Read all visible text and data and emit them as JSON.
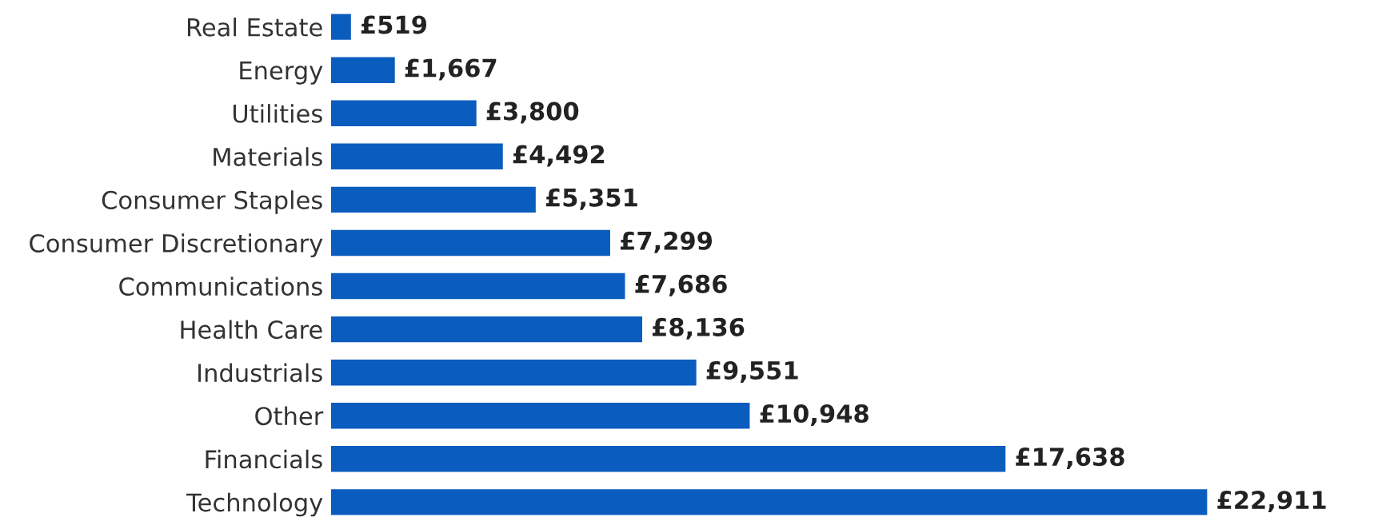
{
  "chart_data": {
    "type": "bar",
    "orientation": "horizontal",
    "tick_labels": "y",
    "grid": false,
    "legend": false,
    "categories": [
      "Real Estate",
      "Energy",
      "Utilities",
      "Materials",
      "Consumer Staples",
      "Consumer Discretionary",
      "Communications",
      "Health Care",
      "Industrials",
      "Other",
      "Financials",
      "Technology"
    ],
    "values": [
      519,
      1667,
      3800,
      4492,
      5351,
      7299,
      7686,
      8136,
      9551,
      10948,
      17638,
      22911
    ],
    "value_labels": [
      "£519",
      "£1,667",
      "£3,800",
      "£4,492",
      "£5,351",
      "£7,299",
      "£7,686",
      "£8,136",
      "£9,551",
      "£10,948",
      "£17,638",
      "£22,911"
    ],
    "color": "#0b5cbf"
  }
}
